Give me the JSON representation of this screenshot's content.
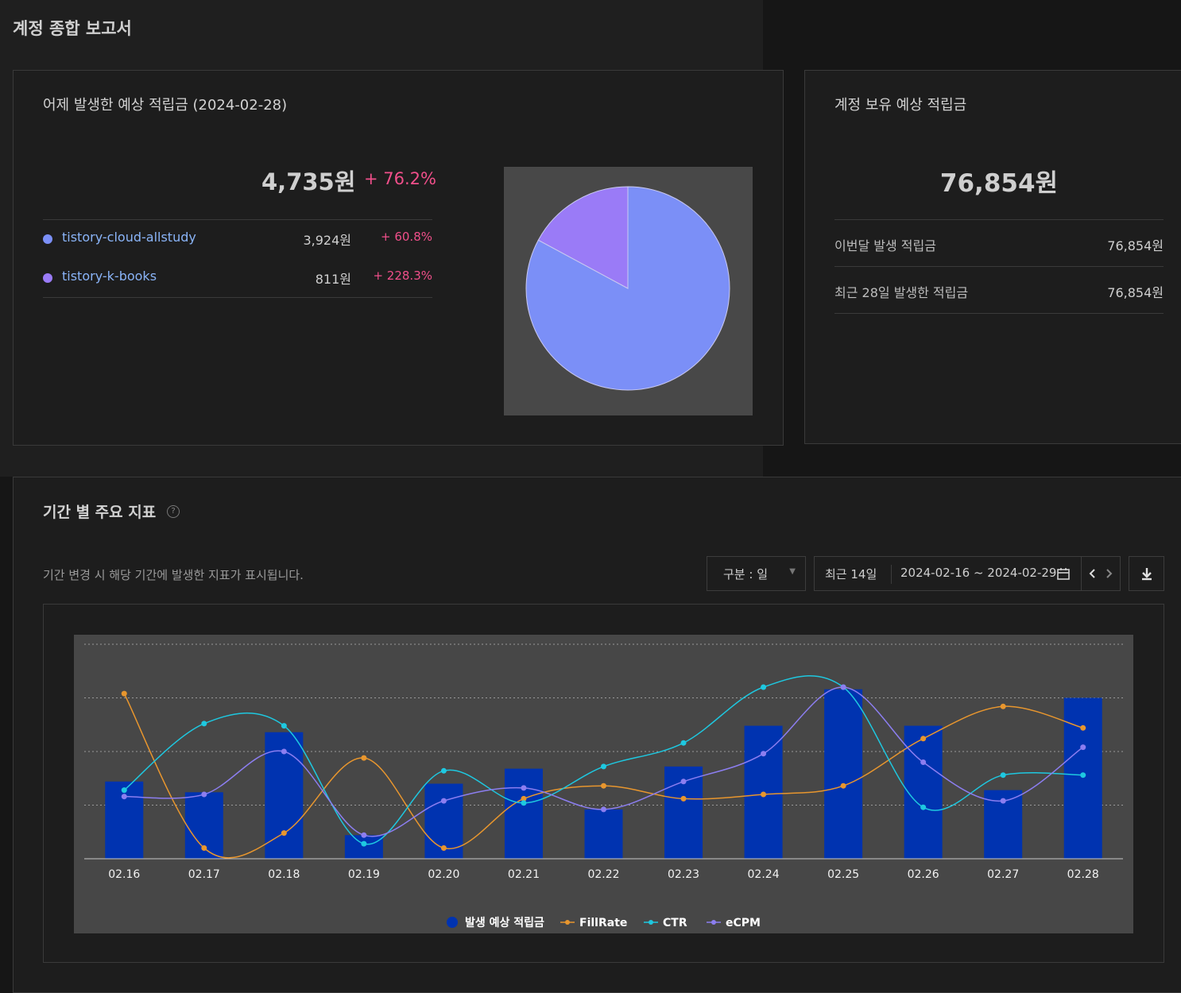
{
  "page": {
    "title": "계정 종합 보고서"
  },
  "yesterday": {
    "title": "어제 발생한 예상 적립금 (2024-02-28)",
    "total": "4,735원",
    "change": "+ 76.2%",
    "sites": [
      {
        "name": "tistory-cloud-allstudy",
        "amount": "3,924원",
        "change": "+ 60.8%",
        "color": "#7b8ff7",
        "value": 3924
      },
      {
        "name": "tistory-k-books",
        "amount": "811원",
        "change": "+ 228.3%",
        "color": "#9a7bf7",
        "value": 811
      }
    ]
  },
  "holdings": {
    "title": "계정 보유 예상 적립금",
    "total": "76,854원",
    "rows": [
      {
        "label": "이번달 발생 적립금",
        "value": "76,854원"
      },
      {
        "label": "최근 28일 발생한 적립금",
        "value": "76,854원"
      }
    ]
  },
  "metrics": {
    "title": "기간 별 주요 지표",
    "help_icon": "question-circle-icon",
    "description": "기간 변경 시 해당 기간에 발생한 지표가 표시됩니다.",
    "group_select": "구분 : 일",
    "range_preset": "최근 14일",
    "date_range": "2024-02-16 ~ 2024-02-29",
    "icons": {
      "calendar": "calendar-icon",
      "prev": "chevron-left-icon",
      "next": "chevron-right-icon",
      "download": "download-icon"
    }
  },
  "chart_data": {
    "type": "bar",
    "categories": [
      "02.16",
      "02.17",
      "02.18",
      "02.19",
      "02.20",
      "02.21",
      "02.22",
      "02.23",
      "02.24",
      "02.25",
      "02.26",
      "02.27",
      "02.28"
    ],
    "series": [
      {
        "name": "발생 예상 적립금",
        "kind": "bar",
        "color": "#0033b0",
        "values": [
          0.36,
          0.31,
          0.59,
          0.11,
          0.35,
          0.42,
          0.23,
          0.43,
          0.62,
          0.79,
          0.62,
          0.32,
          0.75
        ]
      },
      {
        "name": "FillRate",
        "kind": "line",
        "color": "#e8962e",
        "values": [
          0.77,
          0.05,
          0.12,
          0.47,
          0.05,
          0.28,
          0.34,
          0.28,
          0.3,
          0.34,
          0.56,
          0.71,
          0.61
        ]
      },
      {
        "name": "CTR",
        "kind": "line",
        "color": "#1ec8e0",
        "values": [
          0.32,
          0.63,
          0.62,
          0.07,
          0.41,
          0.26,
          0.43,
          0.54,
          0.8,
          0.8,
          0.24,
          0.39,
          0.39
        ]
      },
      {
        "name": "eCPM",
        "kind": "line",
        "color": "#8c7ef0",
        "values": [
          0.29,
          0.3,
          0.5,
          0.11,
          0.27,
          0.33,
          0.23,
          0.36,
          0.49,
          0.8,
          0.45,
          0.27,
          0.52
        ]
      }
    ],
    "ylim": [
      0,
      1
    ],
    "grid": true,
    "legend": "bottom-center"
  }
}
